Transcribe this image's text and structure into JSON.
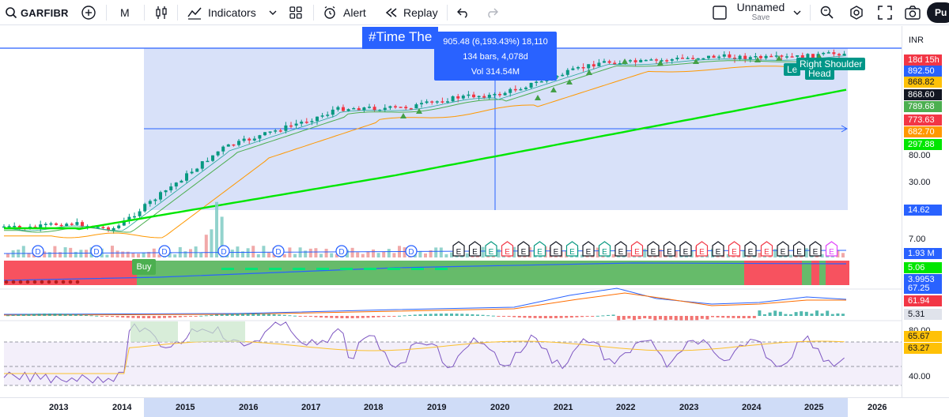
{
  "toolbar": {
    "symbol": "GARFIBR",
    "interval": "M",
    "indicators_label": "Indicators",
    "alert_label": "Alert",
    "replay_label": "Replay",
    "layout_name": "Unnamed",
    "layout_status": "Save",
    "publish_label": "Pu"
  },
  "chart": {
    "title": "#Time The",
    "tooltip": {
      "line1": "905.48 (6,193.43%) 18,110",
      "line2": "134 bars, 4,078d",
      "line3": "Vol 314.54M"
    },
    "pattern_labels": [
      "Le",
      "Head",
      "Right Shoulder"
    ],
    "buy_label": "Buy",
    "earnings_marker": "E",
    "dividend_marker": "D"
  },
  "price_scale": {
    "currency": "INR",
    "ticks": [
      "80.00",
      "30.00",
      "7.00",
      "80.00",
      "40.00"
    ],
    "badges": [
      {
        "text": "18d 15h",
        "color": "#f23645"
      },
      {
        "text": "892.50",
        "color": "#2962ff"
      },
      {
        "text": "868.82",
        "color": "#ffc107"
      },
      {
        "text": "868.60",
        "color": "#131722"
      },
      {
        "text": "789.68",
        "color": "#4caf50"
      },
      {
        "text": "773.63",
        "color": "#f23645"
      },
      {
        "text": "682.70",
        "color": "#ff9800"
      },
      {
        "text": "297.88",
        "color": "#00e600"
      },
      {
        "text": "14.62",
        "color": "#2962ff"
      },
      {
        "text": "1.93 M",
        "color": "#2962ff"
      },
      {
        "text": "5.06",
        "color": "#00e600"
      },
      {
        "text": "3.9953",
        "color": "#2962ff"
      },
      {
        "text": "67.25",
        "color": "#2962ff"
      },
      {
        "text": "61.94",
        "color": "#f23645"
      },
      {
        "text": "5.31",
        "color": "#e0e3eb"
      },
      {
        "text": "65.67",
        "color": "#ffc107"
      },
      {
        "text": "63.27",
        "color": "#ffc107"
      }
    ]
  },
  "time_axis": {
    "years": [
      "2013",
      "2014",
      "2015",
      "2016",
      "2017",
      "2018",
      "2019",
      "2020",
      "2021",
      "2022",
      "2023",
      "2024",
      "2025",
      "2026"
    ]
  },
  "colors": {
    "up": "#089981",
    "down": "#f23645",
    "accent": "#2962ff",
    "ma200": "#00e600",
    "selection": "#d1dcf8"
  }
}
